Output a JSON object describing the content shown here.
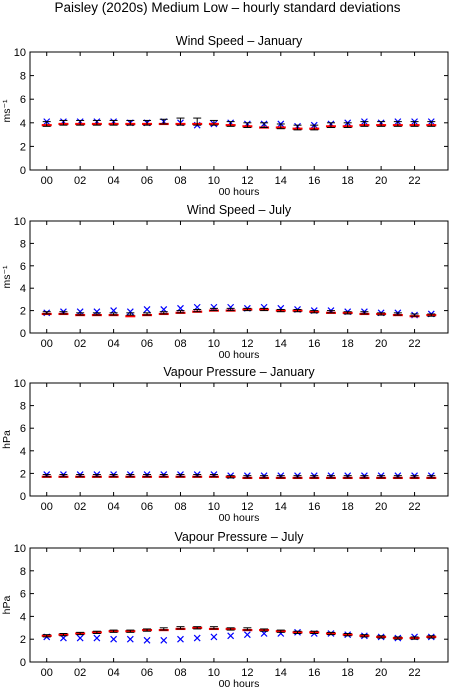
{
  "figure_title": "Paisley (2020s) Medium Low – hourly standard deviations",
  "chart_data": [
    {
      "type": "scatter",
      "title": "Wind Speed – January",
      "xlabel": "00 hours",
      "ylabel": "ms⁻¹",
      "ylim": [
        0,
        10
      ],
      "yticks": [
        0,
        2,
        4,
        6,
        8,
        10
      ],
      "xlim": [
        -1,
        24
      ],
      "xticks": [
        "00",
        "02",
        "04",
        "06",
        "08",
        "10",
        "12",
        "14",
        "16",
        "18",
        "20",
        "22"
      ],
      "x": [
        0,
        1,
        2,
        3,
        4,
        5,
        6,
        7,
        8,
        9,
        10,
        11,
        12,
        13,
        14,
        15,
        16,
        17,
        18,
        19,
        20,
        21,
        22,
        23
      ],
      "series": [
        {
          "marker": "x",
          "color": "#0000ff",
          "values": [
            4.1,
            4.1,
            4.1,
            4.1,
            4.1,
            4.0,
            4.0,
            4.1,
            4.0,
            3.8,
            3.9,
            4.0,
            3.9,
            3.9,
            3.9,
            3.7,
            3.8,
            3.9,
            4.0,
            4.1,
            4.0,
            4.1,
            4.1,
            4.1
          ]
        },
        {
          "marker": "dash",
          "color": "#ff0000",
          "values": [
            3.8,
            3.9,
            3.9,
            3.9,
            3.9,
            3.9,
            3.9,
            3.9,
            3.9,
            3.9,
            3.9,
            3.8,
            3.7,
            3.6,
            3.6,
            3.5,
            3.5,
            3.7,
            3.7,
            3.8,
            3.8,
            3.8,
            3.8,
            3.8
          ]
        },
        {
          "marker": "errorbar",
          "color": "#000000",
          "values": [
            3.9,
            4.0,
            4.0,
            4.0,
            4.0,
            4.0,
            4.0,
            4.1,
            4.1,
            4.1,
            4.0,
            3.9,
            3.8,
            3.8,
            3.7,
            3.6,
            3.6,
            3.8,
            3.8,
            3.9,
            3.9,
            3.9,
            3.9,
            3.9
          ],
          "err": [
            0.2,
            0.2,
            0.2,
            0.2,
            0.2,
            0.2,
            0.2,
            0.2,
            0.3,
            0.3,
            0.2,
            0.2,
            0.2,
            0.2,
            0.2,
            0.2,
            0.2,
            0.2,
            0.2,
            0.2,
            0.2,
            0.2,
            0.2,
            0.2
          ]
        }
      ]
    },
    {
      "type": "scatter",
      "title": "Wind Speed – July",
      "xlabel": "00 hours",
      "ylabel": "ms⁻¹",
      "ylim": [
        0,
        10
      ],
      "yticks": [
        0,
        2,
        4,
        6,
        8,
        10
      ],
      "xlim": [
        -1,
        24
      ],
      "xticks": [
        "00",
        "02",
        "04",
        "06",
        "08",
        "10",
        "12",
        "14",
        "16",
        "18",
        "20",
        "22"
      ],
      "x": [
        0,
        1,
        2,
        3,
        4,
        5,
        6,
        7,
        8,
        9,
        10,
        11,
        12,
        13,
        14,
        15,
        16,
        17,
        18,
        19,
        20,
        21,
        22,
        23
      ],
      "series": [
        {
          "marker": "x",
          "color": "#0000ff",
          "values": [
            1.8,
            1.9,
            1.9,
            1.9,
            2.0,
            1.9,
            2.1,
            2.1,
            2.2,
            2.3,
            2.3,
            2.3,
            2.2,
            2.3,
            2.2,
            2.1,
            2.0,
            2.0,
            1.9,
            1.9,
            1.8,
            1.8,
            1.6,
            1.7
          ]
        },
        {
          "marker": "dash",
          "color": "#ff0000",
          "values": [
            1.7,
            1.7,
            1.6,
            1.6,
            1.6,
            1.5,
            1.6,
            1.7,
            1.8,
            1.9,
            2.0,
            2.0,
            2.1,
            2.1,
            2.0,
            2.0,
            1.9,
            1.8,
            1.8,
            1.7,
            1.7,
            1.6,
            1.5,
            1.6
          ]
        },
        {
          "marker": "errorbar",
          "color": "#000000",
          "values": [
            1.8,
            1.8,
            1.7,
            1.7,
            1.7,
            1.7,
            1.7,
            1.8,
            1.9,
            2.0,
            2.1,
            2.1,
            2.1,
            2.1,
            2.0,
            2.0,
            1.9,
            1.9,
            1.8,
            1.8,
            1.7,
            1.7,
            1.6,
            1.6
          ],
          "err": [
            0.1,
            0.1,
            0.1,
            0.1,
            0.1,
            0.1,
            0.1,
            0.1,
            0.1,
            0.1,
            0.1,
            0.1,
            0.1,
            0.1,
            0.1,
            0.1,
            0.1,
            0.1,
            0.1,
            0.1,
            0.1,
            0.1,
            0.1,
            0.1
          ]
        }
      ]
    },
    {
      "type": "scatter",
      "title": "Vapour Pressure – January",
      "xlabel": "00 hours",
      "ylabel": "hPa",
      "ylim": [
        0,
        10
      ],
      "yticks": [
        0,
        2,
        4,
        6,
        8,
        10
      ],
      "xlim": [
        -1,
        24
      ],
      "xticks": [
        "00",
        "02",
        "04",
        "06",
        "08",
        "10",
        "12",
        "14",
        "16",
        "18",
        "20",
        "22"
      ],
      "x": [
        0,
        1,
        2,
        3,
        4,
        5,
        6,
        7,
        8,
        9,
        10,
        11,
        12,
        13,
        14,
        15,
        16,
        17,
        18,
        19,
        20,
        21,
        22,
        23
      ],
      "series": [
        {
          "marker": "x",
          "color": "#0000ff",
          "values": [
            1.9,
            1.9,
            1.9,
            1.9,
            1.9,
            1.9,
            1.9,
            1.9,
            1.9,
            1.9,
            1.9,
            1.8,
            1.8,
            1.8,
            1.8,
            1.8,
            1.8,
            1.8,
            1.8,
            1.8,
            1.8,
            1.8,
            1.8,
            1.8
          ]
        },
        {
          "marker": "dash",
          "color": "#ff0000",
          "values": [
            1.7,
            1.7,
            1.7,
            1.7,
            1.7,
            1.7,
            1.7,
            1.7,
            1.7,
            1.7,
            1.7,
            1.7,
            1.6,
            1.6,
            1.6,
            1.6,
            1.6,
            1.6,
            1.6,
            1.6,
            1.6,
            1.6,
            1.6,
            1.6
          ]
        },
        {
          "marker": "errorbar",
          "color": "#000000",
          "values": [
            1.8,
            1.8,
            1.8,
            1.8,
            1.8,
            1.8,
            1.8,
            1.8,
            1.8,
            1.8,
            1.8,
            1.7,
            1.7,
            1.7,
            1.7,
            1.7,
            1.7,
            1.7,
            1.7,
            1.7,
            1.7,
            1.7,
            1.7,
            1.7
          ],
          "err": [
            0.1,
            0.1,
            0.1,
            0.1,
            0.1,
            0.1,
            0.1,
            0.1,
            0.1,
            0.1,
            0.1,
            0.1,
            0.1,
            0.1,
            0.1,
            0.1,
            0.1,
            0.1,
            0.1,
            0.1,
            0.1,
            0.1,
            0.1,
            0.1
          ]
        }
      ]
    },
    {
      "type": "scatter",
      "title": "Vapour Pressure – July",
      "xlabel": "00 hours",
      "ylabel": "hPa",
      "ylim": [
        0,
        10
      ],
      "yticks": [
        0,
        2,
        4,
        6,
        8,
        10
      ],
      "xlim": [
        -1,
        24
      ],
      "xticks": [
        "00",
        "02",
        "04",
        "06",
        "08",
        "10",
        "12",
        "14",
        "16",
        "18",
        "20",
        "22"
      ],
      "x": [
        0,
        1,
        2,
        3,
        4,
        5,
        6,
        7,
        8,
        9,
        10,
        11,
        12,
        13,
        14,
        15,
        16,
        17,
        18,
        19,
        20,
        21,
        22,
        23
      ],
      "series": [
        {
          "marker": "x",
          "color": "#0000ff",
          "values": [
            2.2,
            2.1,
            2.1,
            2.1,
            2.0,
            2.0,
            1.9,
            1.9,
            2.0,
            2.1,
            2.2,
            2.3,
            2.4,
            2.5,
            2.5,
            2.6,
            2.5,
            2.5,
            2.4,
            2.3,
            2.2,
            2.1,
            2.2,
            2.2
          ]
        },
        {
          "marker": "dash",
          "color": "#ff0000",
          "values": [
            2.3,
            2.4,
            2.5,
            2.6,
            2.7,
            2.7,
            2.8,
            2.8,
            2.9,
            3.0,
            2.9,
            2.9,
            2.8,
            2.8,
            2.7,
            2.6,
            2.6,
            2.5,
            2.4,
            2.3,
            2.2,
            2.1,
            2.1,
            2.2
          ]
        },
        {
          "marker": "errorbar",
          "color": "#000000",
          "values": [
            2.3,
            2.4,
            2.5,
            2.6,
            2.7,
            2.7,
            2.8,
            2.9,
            3.0,
            3.0,
            3.0,
            2.9,
            2.9,
            2.8,
            2.7,
            2.6,
            2.6,
            2.5,
            2.4,
            2.3,
            2.2,
            2.1,
            2.1,
            2.2
          ],
          "err": [
            0.1,
            0.1,
            0.1,
            0.1,
            0.1,
            0.1,
            0.1,
            0.1,
            0.1,
            0.1,
            0.1,
            0.1,
            0.1,
            0.1,
            0.1,
            0.1,
            0.1,
            0.1,
            0.1,
            0.1,
            0.1,
            0.1,
            0.1,
            0.1
          ]
        }
      ]
    }
  ]
}
